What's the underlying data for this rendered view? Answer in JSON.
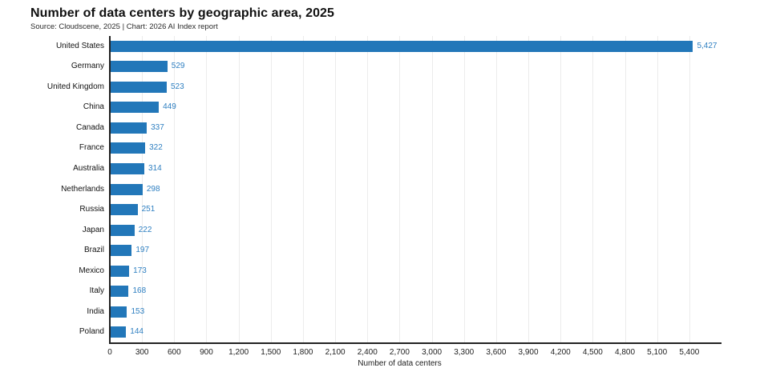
{
  "chart": {
    "title": "Number of data centers by geographic area, 2025",
    "subtitle": "Source: Cloudscene, 2025 | Chart: 2026 AI Index report",
    "xlabel": "Number of data centers"
  },
  "chart_data": {
    "type": "bar",
    "orientation": "horizontal",
    "title": "Number of data centers by geographic area, 2025",
    "subtitle": "Source: Cloudscene, 2025 | Chart: 2026 AI Index report",
    "categories": [
      "United States",
      "Germany",
      "United Kingdom",
      "China",
      "Canada",
      "France",
      "Australia",
      "Netherlands",
      "Russia",
      "Japan",
      "Brazil",
      "Mexico",
      "Italy",
      "India",
      "Poland"
    ],
    "values": [
      5427,
      529,
      523,
      449,
      337,
      322,
      314,
      298,
      251,
      222,
      197,
      173,
      168,
      153,
      144
    ],
    "value_labels": [
      "5,427",
      "529",
      "523",
      "449",
      "337",
      "322",
      "314",
      "298",
      "251",
      "222",
      "197",
      "173",
      "168",
      "153",
      "144"
    ],
    "xlabel": "Number of data centers",
    "xlim": [
      0,
      5700
    ],
    "xticks": [
      0,
      300,
      600,
      900,
      1200,
      1500,
      1800,
      2100,
      2400,
      2700,
      3000,
      3300,
      3600,
      3900,
      4200,
      4500,
      4800,
      5100,
      5400
    ],
    "xtick_labels": [
      "0",
      "300",
      "600",
      "900",
      "1,200",
      "1,500",
      "1,800",
      "2,100",
      "2,400",
      "2,700",
      "3,000",
      "3,300",
      "3,600",
      "3,900",
      "4,200",
      "4,500",
      "4,800",
      "5,100",
      "5,400"
    ],
    "grid": "vertical",
    "legend": "none",
    "bar_color": "#2277b9",
    "value_label_color": "#2e7fc1",
    "axis_color": "#222222",
    "gridline_color": "#ececec"
  }
}
